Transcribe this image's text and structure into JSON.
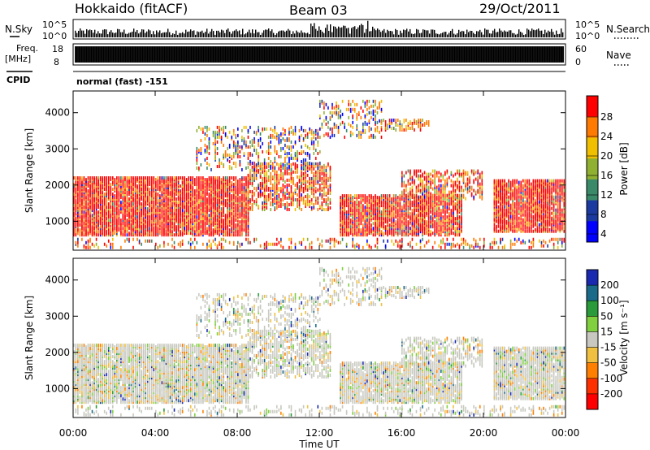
{
  "header": {
    "radar": "Hokkaido (fitACF)",
    "beam": "Beam 03",
    "date": "29/Oct/2011"
  },
  "top_strip": {
    "nsky_label": "N.Sky",
    "nsearch_label": "N.Search",
    "left_ticks": [
      "10^5",
      "10^0"
    ],
    "right_ticks": [
      "10^5",
      "10^0"
    ],
    "freq_label_1": "Freq.",
    "freq_label_2": "[MHz]",
    "freq_ticks": [
      "18",
      "8"
    ],
    "nave_label": "Nave",
    "nave_ticks": [
      "60",
      "0"
    ],
    "cpid_label": "CPID",
    "cpid_text": "normal (fast) -151"
  },
  "chart_data": [
    {
      "type": "heatmap",
      "xlabel": "",
      "ylabel": "Slant Range [km]",
      "x_ticks": [
        "00:00",
        "04:00",
        "08:00",
        "12:00",
        "16:00",
        "20:00",
        "00:00"
      ],
      "y_ticks": [
        "1000",
        "2000",
        "3000",
        "4000"
      ],
      "ylim": [
        200,
        4600
      ],
      "colorbar_label": "Power [dB]",
      "colorbar_ticks": [
        "28",
        "24",
        "20",
        "16",
        "12",
        "8",
        "4"
      ],
      "colorbar_colors": [
        "#ff0000",
        "#ff7a00",
        "#f0c000",
        "#8fb030",
        "#3a8a6a",
        "#1a3aa0",
        "#0000ff"
      ],
      "colorbar_range": [
        0,
        30
      ]
    },
    {
      "type": "heatmap",
      "xlabel": "Time UT",
      "ylabel": "Slant Range [km]",
      "x_ticks": [
        "00:00",
        "04:00",
        "08:00",
        "12:00",
        "16:00",
        "20:00",
        "00:00"
      ],
      "y_ticks": [
        "1000",
        "2000",
        "3000",
        "4000"
      ],
      "ylim": [
        200,
        4600
      ],
      "colorbar_label": "Velocity [m s⁻¹]",
      "colorbar_ticks": [
        "200",
        "100",
        "50",
        "15",
        "-15",
        "-50",
        "-100",
        "-200"
      ],
      "colorbar_colors": [
        "#1a2ab0",
        "#1a6a8a",
        "#2a9a3a",
        "#80d040",
        "#c8c8c0",
        "#f0c040",
        "#ff8000",
        "#ff3000",
        "#ff0000"
      ]
    }
  ]
}
